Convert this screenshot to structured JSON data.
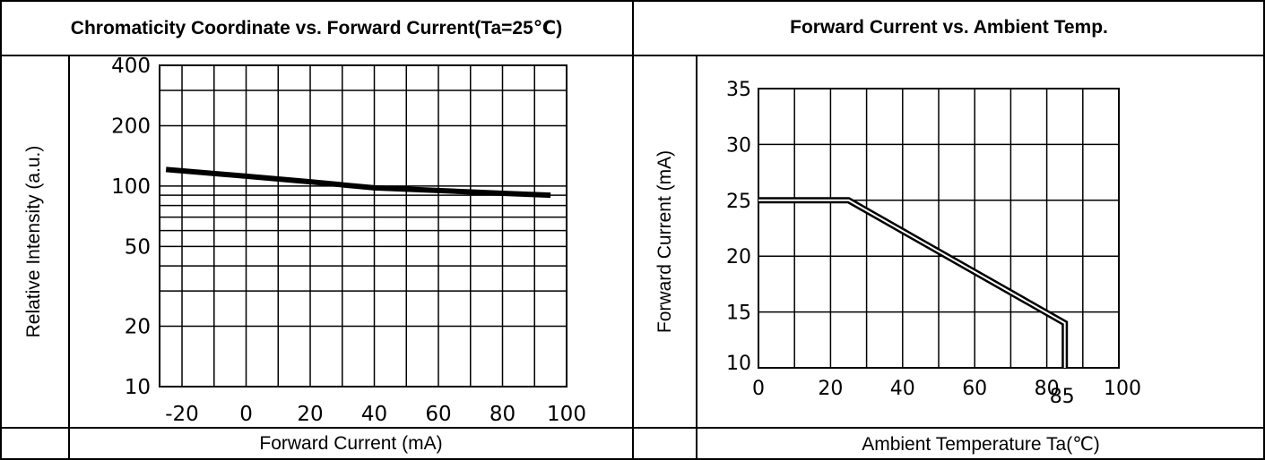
{
  "chart_data": [
    {
      "type": "line",
      "title": "Chromaticity Coordinate vs. Forward Current(Ta=25℃)",
      "xlabel": "Forward Current (mA)",
      "ylabel": "Relative Intensity (a.u.)",
      "yscale": "log",
      "xlim": [
        -27,
        100
      ],
      "ylim": [
        10,
        400
      ],
      "x_ticks": [
        "-20",
        "0",
        "20",
        "40",
        "60",
        "80",
        "100"
      ],
      "y_ticks": [
        "400",
        "200",
        "100",
        "50",
        "20",
        "10"
      ],
      "grid": true,
      "series": [
        {
          "x": [
            -25,
            0,
            20,
            40,
            60,
            80,
            95
          ],
          "y": [
            121,
            112,
            105,
            98,
            95,
            92,
            90
          ]
        }
      ]
    },
    {
      "type": "line",
      "title": "Forward Current vs. Ambient Temp.",
      "xlabel": "Ambient Temperature Ta(℃)",
      "ylabel": "Forward Current (mA)",
      "xlim": [
        0,
        100
      ],
      "ylim": [
        10,
        35
      ],
      "x_ticks": [
        "0",
        "20",
        "40",
        "60",
        "80",
        "85",
        "100"
      ],
      "y_ticks": [
        "35",
        "30",
        "25",
        "20",
        "15",
        "10"
      ],
      "grid": true,
      "series": [
        {
          "x": [
            0,
            25,
            85,
            85
          ],
          "y": [
            25,
            25,
            14,
            10
          ]
        }
      ]
    }
  ]
}
